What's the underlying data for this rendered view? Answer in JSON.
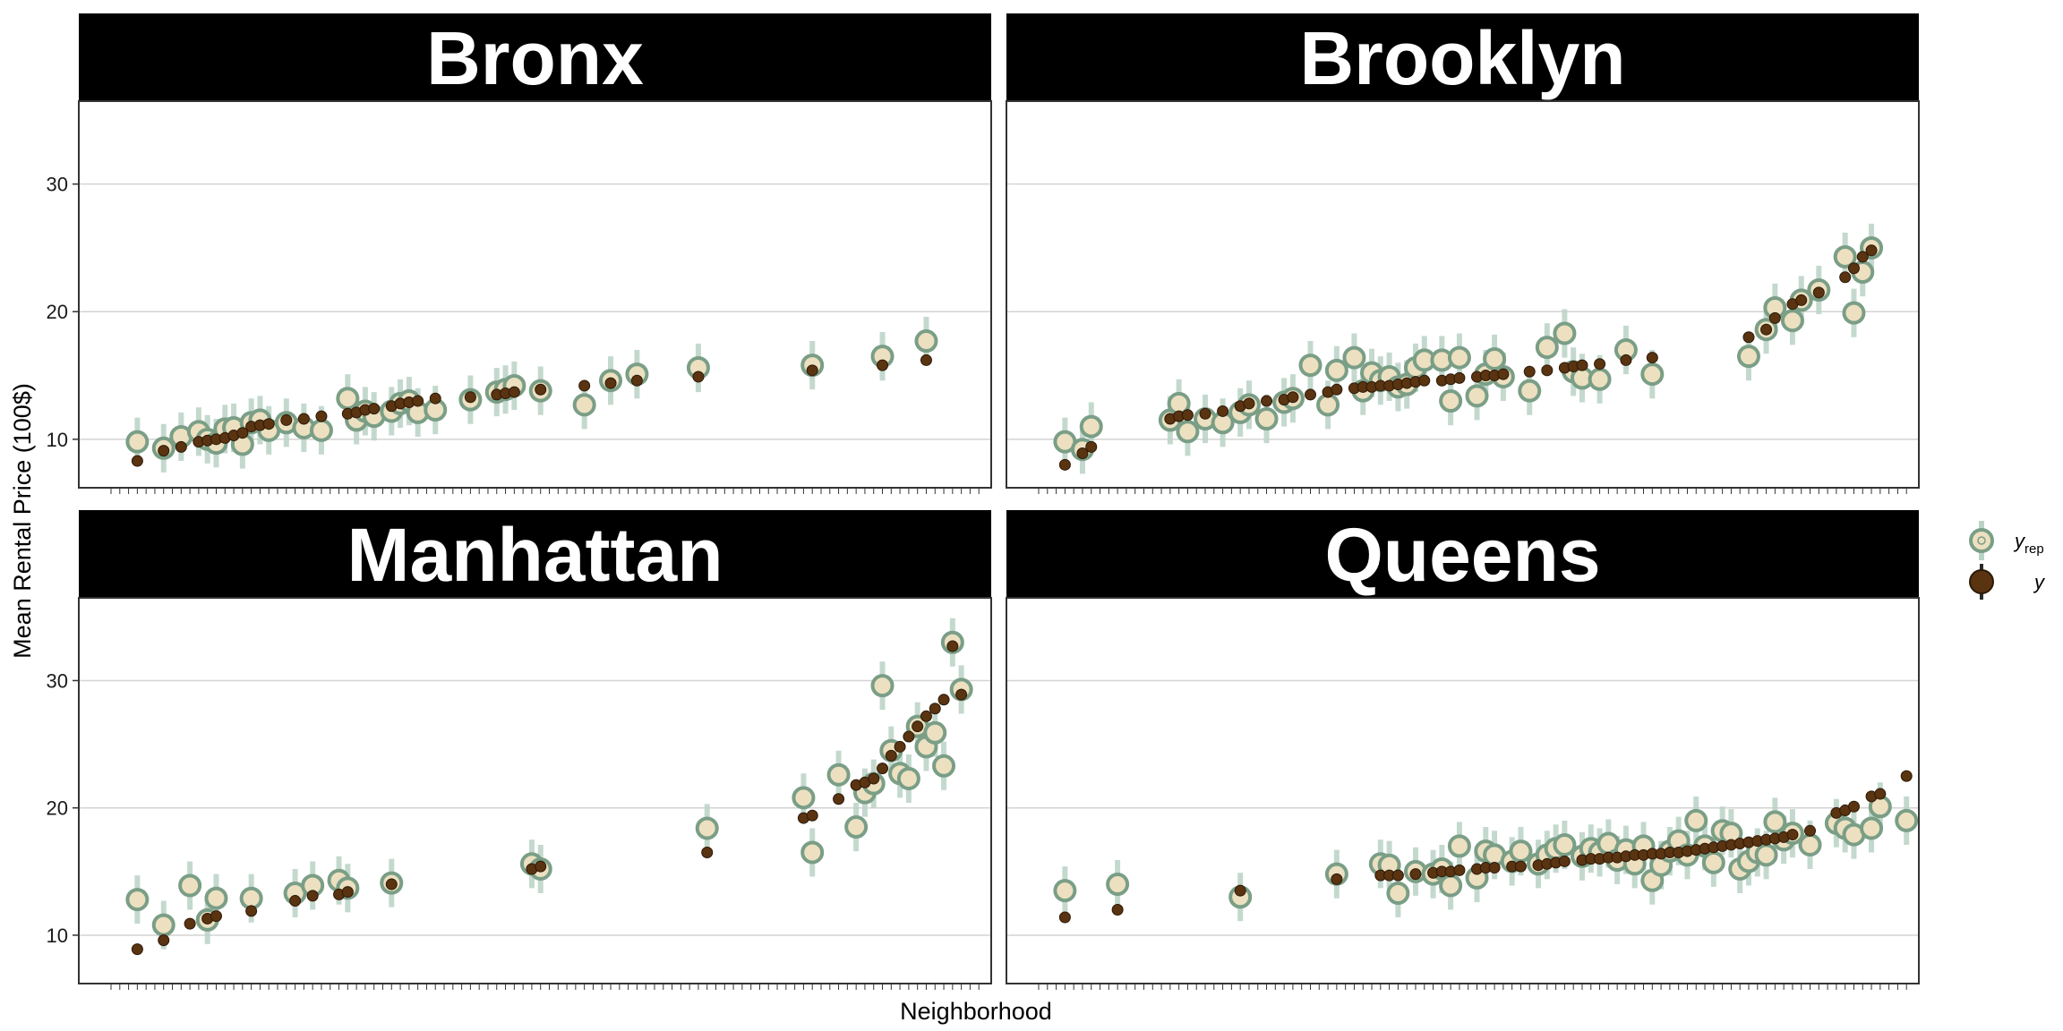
{
  "chart_data": {
    "type": "scatter",
    "ylabel": "Mean Rental Price (100$)",
    "xlabel": "Neighborhood",
    "y_ticks": [
      "10",
      "20",
      "30"
    ],
    "ylim": [
      6.2,
      36.5
    ],
    "grid": "horizontal",
    "legend_position": "right",
    "legend": [
      {
        "key": "yrep",
        "label": "y",
        "subscript": "rep"
      },
      {
        "key": "y",
        "label": "y",
        "subscript": ""
      }
    ],
    "colors": {
      "yrep_fill": "#ece0c0",
      "yrep_stroke": "#7a9e86",
      "interval": "#bad3c6",
      "y_point": "#5a3311",
      "strip_bg": "#000000",
      "grid": "#d3d3d3"
    },
    "panels": [
      {
        "name": "Bronx",
        "n_ticks": 100,
        "points": [
          {
            "x": 4,
            "y": 8.3,
            "rep": 9.8
          },
          {
            "x": 7,
            "y": 9.1,
            "rep": 9.3
          },
          {
            "x": 9,
            "y": 9.4,
            "rep": 10.2
          },
          {
            "x": 11,
            "y": 9.8,
            "rep": 10.6
          },
          {
            "x": 12,
            "y": 9.9,
            "rep": 10.0
          },
          {
            "x": 13,
            "y": 10.0,
            "rep": 9.7
          },
          {
            "x": 14,
            "y": 10.1,
            "rep": 10.8
          },
          {
            "x": 15,
            "y": 10.3,
            "rep": 10.9
          },
          {
            "x": 16,
            "y": 10.5,
            "rep": 9.6
          },
          {
            "x": 17,
            "y": 11.0,
            "rep": 11.3
          },
          {
            "x": 18,
            "y": 11.1,
            "rep": 11.5
          },
          {
            "x": 19,
            "y": 11.2,
            "rep": 10.7
          },
          {
            "x": 21,
            "y": 11.5,
            "rep": 11.3
          },
          {
            "x": 23,
            "y": 11.6,
            "rep": 10.9
          },
          {
            "x": 25,
            "y": 11.8,
            "rep": 10.7
          },
          {
            "x": 28,
            "y": 12.0,
            "rep": 13.2
          },
          {
            "x": 29,
            "y": 12.1,
            "rep": 11.5
          },
          {
            "x": 30,
            "y": 12.3,
            "rep": 12.2
          },
          {
            "x": 31,
            "y": 12.4,
            "rep": 11.8
          },
          {
            "x": 33,
            "y": 12.6,
            "rep": 12.2
          },
          {
            "x": 34,
            "y": 12.8,
            "rep": 12.8
          },
          {
            "x": 35,
            "y": 12.9,
            "rep": 13.0
          },
          {
            "x": 36,
            "y": 13.0,
            "rep": 12.1
          },
          {
            "x": 38,
            "y": 13.2,
            "rep": 12.3
          },
          {
            "x": 42,
            "y": 13.3,
            "rep": 13.1
          },
          {
            "x": 45,
            "y": 13.5,
            "rep": 13.7
          },
          {
            "x": 46,
            "y": 13.6,
            "rep": 13.9
          },
          {
            "x": 47,
            "y": 13.7,
            "rep": 14.2
          },
          {
            "x": 50,
            "y": 13.9,
            "rep": 13.8
          },
          {
            "x": 55,
            "y": 14.2,
            "rep": 12.7
          },
          {
            "x": 58,
            "y": 14.4,
            "rep": 14.6
          },
          {
            "x": 61,
            "y": 14.6,
            "rep": 15.1
          },
          {
            "x": 68,
            "y": 14.9,
            "rep": 15.6
          },
          {
            "x": 81,
            "y": 15.4,
            "rep": 15.8
          },
          {
            "x": 89,
            "y": 15.8,
            "rep": 16.5
          },
          {
            "x": 94,
            "y": 16.2,
            "rep": 17.7
          }
        ]
      },
      {
        "name": "Brooklyn",
        "n_ticks": 100,
        "points": [
          {
            "x": 4,
            "y": 8.0,
            "rep": 9.8
          },
          {
            "x": 6,
            "y": 8.9,
            "rep": 9.2
          },
          {
            "x": 7,
            "y": 9.4,
            "rep": 11.0
          },
          {
            "x": 16,
            "y": 11.6,
            "rep": 11.5
          },
          {
            "x": 17,
            "y": 11.8,
            "rep": 12.8
          },
          {
            "x": 18,
            "y": 11.9,
            "rep": 10.6
          },
          {
            "x": 20,
            "y": 12.0,
            "rep": 11.6
          },
          {
            "x": 22,
            "y": 12.2,
            "rep": 11.3
          },
          {
            "x": 24,
            "y": 12.6,
            "rep": 12.1
          },
          {
            "x": 25,
            "y": 12.8,
            "rep": 12.7
          },
          {
            "x": 27,
            "y": 13.0,
            "rep": 11.6
          },
          {
            "x": 29,
            "y": 13.1,
            "rep": 12.9
          },
          {
            "x": 30,
            "y": 13.3,
            "rep": 13.2
          },
          {
            "x": 32,
            "y": 13.5,
            "rep": 15.8
          },
          {
            "x": 34,
            "y": 13.7,
            "rep": 12.7
          },
          {
            "x": 35,
            "y": 13.9,
            "rep": 15.4
          },
          {
            "x": 37,
            "y": 14.0,
            "rep": 16.4
          },
          {
            "x": 38,
            "y": 14.1,
            "rep": 13.8
          },
          {
            "x": 39,
            "y": 14.1,
            "rep": 15.2
          },
          {
            "x": 40,
            "y": 14.2,
            "rep": 14.6
          },
          {
            "x": 41,
            "y": 14.2,
            "rep": 14.9
          },
          {
            "x": 42,
            "y": 14.3,
            "rep": 14.1
          },
          {
            "x": 43,
            "y": 14.4,
            "rep": 14.3
          },
          {
            "x": 44,
            "y": 14.5,
            "rep": 15.6
          },
          {
            "x": 45,
            "y": 14.6,
            "rep": 16.2
          },
          {
            "x": 47,
            "y": 14.6,
            "rep": 16.2
          },
          {
            "x": 48,
            "y": 14.7,
            "rep": 13.0
          },
          {
            "x": 49,
            "y": 14.8,
            "rep": 16.4
          },
          {
            "x": 51,
            "y": 14.9,
            "rep": 13.4
          },
          {
            "x": 52,
            "y": 15.0,
            "rep": 15.1
          },
          {
            "x": 53,
            "y": 15.0,
            "rep": 16.3
          },
          {
            "x": 54,
            "y": 15.1,
            "rep": 14.9
          },
          {
            "x": 57,
            "y": 15.3,
            "rep": 13.8
          },
          {
            "x": 59,
            "y": 15.4,
            "rep": 17.2
          },
          {
            "x": 61,
            "y": 15.6,
            "rep": 18.3
          },
          {
            "x": 62,
            "y": 15.7,
            "rep": 15.3
          },
          {
            "x": 63,
            "y": 15.8,
            "rep": 14.8
          },
          {
            "x": 65,
            "y": 15.9,
            "rep": 14.7
          },
          {
            "x": 68,
            "y": 16.2,
            "rep": 17.0
          },
          {
            "x": 71,
            "y": 16.4,
            "rep": 15.1
          },
          {
            "x": 82,
            "y": 18.0,
            "rep": 16.5
          },
          {
            "x": 84,
            "y": 18.6,
            "rep": 18.6
          },
          {
            "x": 85,
            "y": 19.5,
            "rep": 20.3
          },
          {
            "x": 87,
            "y": 20.6,
            "rep": 19.3
          },
          {
            "x": 88,
            "y": 20.9,
            "rep": 20.9
          },
          {
            "x": 90,
            "y": 21.5,
            "rep": 21.7
          },
          {
            "x": 93,
            "y": 22.7,
            "rep": 24.3
          },
          {
            "x": 94,
            "y": 23.4,
            "rep": 19.9
          },
          {
            "x": 95,
            "y": 24.3,
            "rep": 23.1
          },
          {
            "x": 96,
            "y": 24.8,
            "rep": 25.0
          }
        ]
      },
      {
        "name": "Manhattan",
        "n_ticks": 100,
        "points": [
          {
            "x": 4,
            "y": 8.9,
            "rep": 12.8
          },
          {
            "x": 7,
            "y": 9.6,
            "rep": 10.8
          },
          {
            "x": 10,
            "y": 10.9,
            "rep": 13.9
          },
          {
            "x": 12,
            "y": 11.3,
            "rep": 11.2
          },
          {
            "x": 13,
            "y": 11.5,
            "rep": 12.9
          },
          {
            "x": 17,
            "y": 11.9,
            "rep": 12.9
          },
          {
            "x": 22,
            "y": 12.7,
            "rep": 13.3
          },
          {
            "x": 24,
            "y": 13.1,
            "rep": 13.9
          },
          {
            "x": 27,
            "y": 13.2,
            "rep": 14.3
          },
          {
            "x": 28,
            "y": 13.4,
            "rep": 13.7
          },
          {
            "x": 33,
            "y": 14.0,
            "rep": 14.1
          },
          {
            "x": 49,
            "y": 15.2,
            "rep": 15.6
          },
          {
            "x": 50,
            "y": 15.4,
            "rep": 15.2
          },
          {
            "x": 69,
            "y": 16.5,
            "rep": 18.4
          },
          {
            "x": 80,
            "y": 19.2,
            "rep": 20.8
          },
          {
            "x": 81,
            "y": 19.4,
            "rep": 16.5
          },
          {
            "x": 84,
            "y": 20.7,
            "rep": 22.6
          },
          {
            "x": 86,
            "y": 21.8,
            "rep": 18.5
          },
          {
            "x": 87,
            "y": 22.0,
            "rep": 21.2
          },
          {
            "x": 88,
            "y": 22.3,
            "rep": 21.9
          },
          {
            "x": 89,
            "y": 23.1,
            "rep": 29.6
          },
          {
            "x": 90,
            "y": 24.1,
            "rep": 24.5
          },
          {
            "x": 91,
            "y": 24.8,
            "rep": 22.7
          },
          {
            "x": 92,
            "y": 25.6,
            "rep": 22.3
          },
          {
            "x": 93,
            "y": 26.4,
            "rep": 26.4
          },
          {
            "x": 94,
            "y": 27.2,
            "rep": 24.8
          },
          {
            "x": 95,
            "y": 27.8,
            "rep": 25.9
          },
          {
            "x": 96,
            "y": 28.5,
            "rep": 23.3
          },
          {
            "x": 97,
            "y": 32.7,
            "rep": 33.0
          },
          {
            "x": 98,
            "y": 28.9,
            "rep": 29.3
          }
        ]
      },
      {
        "name": "Queens",
        "n_ticks": 100,
        "points": [
          {
            "x": 4,
            "y": 11.4,
            "rep": 13.5
          },
          {
            "x": 10,
            "y": 12.0,
            "rep": 14.0
          },
          {
            "x": 24,
            "y": 13.5,
            "rep": 13.0
          },
          {
            "x": 35,
            "y": 14.4,
            "rep": 14.8
          },
          {
            "x": 40,
            "y": 14.7,
            "rep": 15.6
          },
          {
            "x": 41,
            "y": 14.7,
            "rep": 15.5
          },
          {
            "x": 42,
            "y": 14.7,
            "rep": 13.3
          },
          {
            "x": 44,
            "y": 14.8,
            "rep": 15.0
          },
          {
            "x": 46,
            "y": 14.9,
            "rep": 14.8
          },
          {
            "x": 47,
            "y": 15.0,
            "rep": 15.2
          },
          {
            "x": 48,
            "y": 15.0,
            "rep": 13.9
          },
          {
            "x": 49,
            "y": 15.1,
            "rep": 17.0
          },
          {
            "x": 51,
            "y": 15.2,
            "rep": 14.5
          },
          {
            "x": 52,
            "y": 15.3,
            "rep": 16.6
          },
          {
            "x": 53,
            "y": 15.3,
            "rep": 16.3
          },
          {
            "x": 55,
            "y": 15.4,
            "rep": 15.8
          },
          {
            "x": 56,
            "y": 15.4,
            "rep": 16.6
          },
          {
            "x": 58,
            "y": 15.5,
            "rep": 15.6
          },
          {
            "x": 59,
            "y": 15.6,
            "rep": 16.3
          },
          {
            "x": 60,
            "y": 15.7,
            "rep": 16.8
          },
          {
            "x": 61,
            "y": 15.8,
            "rep": 17.1
          },
          {
            "x": 63,
            "y": 15.9,
            "rep": 16.2
          },
          {
            "x": 64,
            "y": 16.0,
            "rep": 16.8
          },
          {
            "x": 65,
            "y": 16.0,
            "rep": 16.5
          },
          {
            "x": 66,
            "y": 16.1,
            "rep": 17.2
          },
          {
            "x": 67,
            "y": 16.1,
            "rep": 15.9
          },
          {
            "x": 68,
            "y": 16.2,
            "rep": 16.7
          },
          {
            "x": 69,
            "y": 16.3,
            "rep": 15.6
          },
          {
            "x": 70,
            "y": 16.3,
            "rep": 17.0
          },
          {
            "x": 71,
            "y": 16.4,
            "rep": 14.3
          },
          {
            "x": 72,
            "y": 16.4,
            "rep": 15.5
          },
          {
            "x": 73,
            "y": 16.5,
            "rep": 16.6
          },
          {
            "x": 74,
            "y": 16.5,
            "rep": 17.4
          },
          {
            "x": 75,
            "y": 16.6,
            "rep": 16.3
          },
          {
            "x": 76,
            "y": 16.7,
            "rep": 19.0
          },
          {
            "x": 77,
            "y": 16.8,
            "rep": 17.0
          },
          {
            "x": 78,
            "y": 16.9,
            "rep": 15.7
          },
          {
            "x": 79,
            "y": 17.0,
            "rep": 18.2
          },
          {
            "x": 80,
            "y": 17.1,
            "rep": 18.0
          },
          {
            "x": 81,
            "y": 17.2,
            "rep": 15.2
          },
          {
            "x": 82,
            "y": 17.3,
            "rep": 15.8
          },
          {
            "x": 83,
            "y": 17.4,
            "rep": 16.5
          },
          {
            "x": 84,
            "y": 17.5,
            "rep": 16.3
          },
          {
            "x": 85,
            "y": 17.6,
            "rep": 18.9
          },
          {
            "x": 86,
            "y": 17.7,
            "rep": 17.5
          },
          {
            "x": 87,
            "y": 17.9,
            "rep": 18.0
          },
          {
            "x": 89,
            "y": 18.2,
            "rep": 17.1
          },
          {
            "x": 92,
            "y": 19.6,
            "rep": 18.8
          },
          {
            "x": 93,
            "y": 19.8,
            "rep": 18.4
          },
          {
            "x": 94,
            "y": 20.1,
            "rep": 17.9
          },
          {
            "x": 96,
            "y": 20.9,
            "rep": 18.4
          },
          {
            "x": 97,
            "y": 21.1,
            "rep": 20.1
          },
          {
            "x": 100,
            "y": 22.5,
            "rep": 19.0
          }
        ]
      }
    ]
  }
}
